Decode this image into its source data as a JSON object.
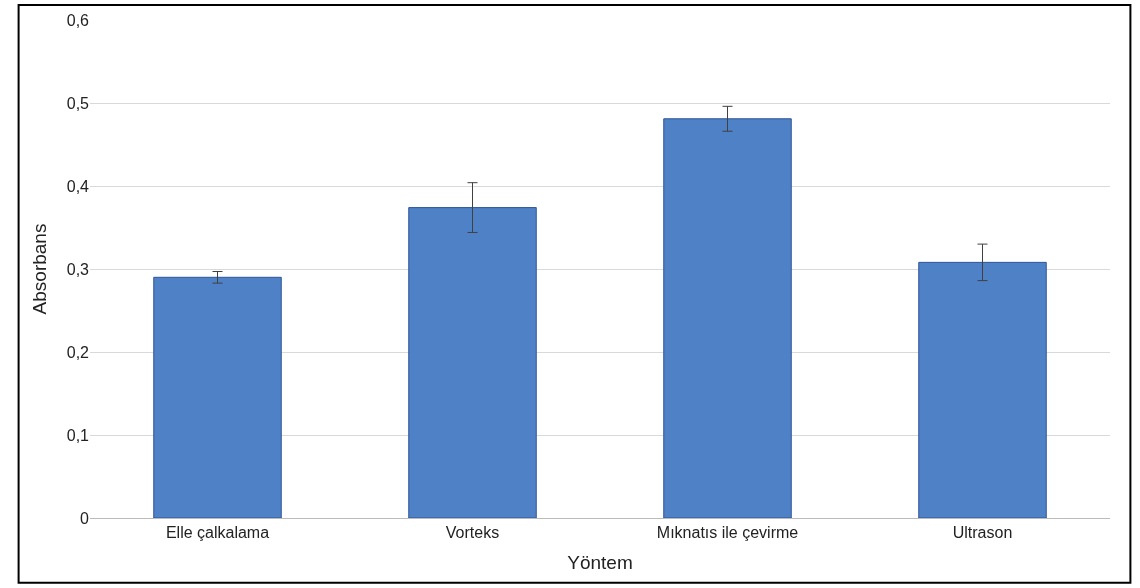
{
  "chart_data": {
    "type": "bar",
    "xlabel": "Yöntem",
    "ylabel": "Absorbans",
    "categories": [
      "Elle çalkalama",
      "Vorteks",
      "Mıknatıs ile çevirme",
      "Ultrason"
    ],
    "values": [
      0.29,
      0.374,
      0.481,
      0.308
    ],
    "errors": [
      0.007,
      0.03,
      0.015,
      0.022
    ],
    "color": "#4f81c7",
    "ylim": [
      0,
      0.6
    ],
    "yticks": [
      {
        "value": 0,
        "label": "0"
      },
      {
        "value": 0.1,
        "label": "0,1"
      },
      {
        "value": 0.2,
        "label": "0,2"
      },
      {
        "value": 0.3,
        "label": "0,3"
      },
      {
        "value": 0.4,
        "label": "0,4"
      },
      {
        "value": 0.5,
        "label": "0,5"
      },
      {
        "value": 0.6,
        "label": "0,6"
      }
    ],
    "grid": "y"
  }
}
